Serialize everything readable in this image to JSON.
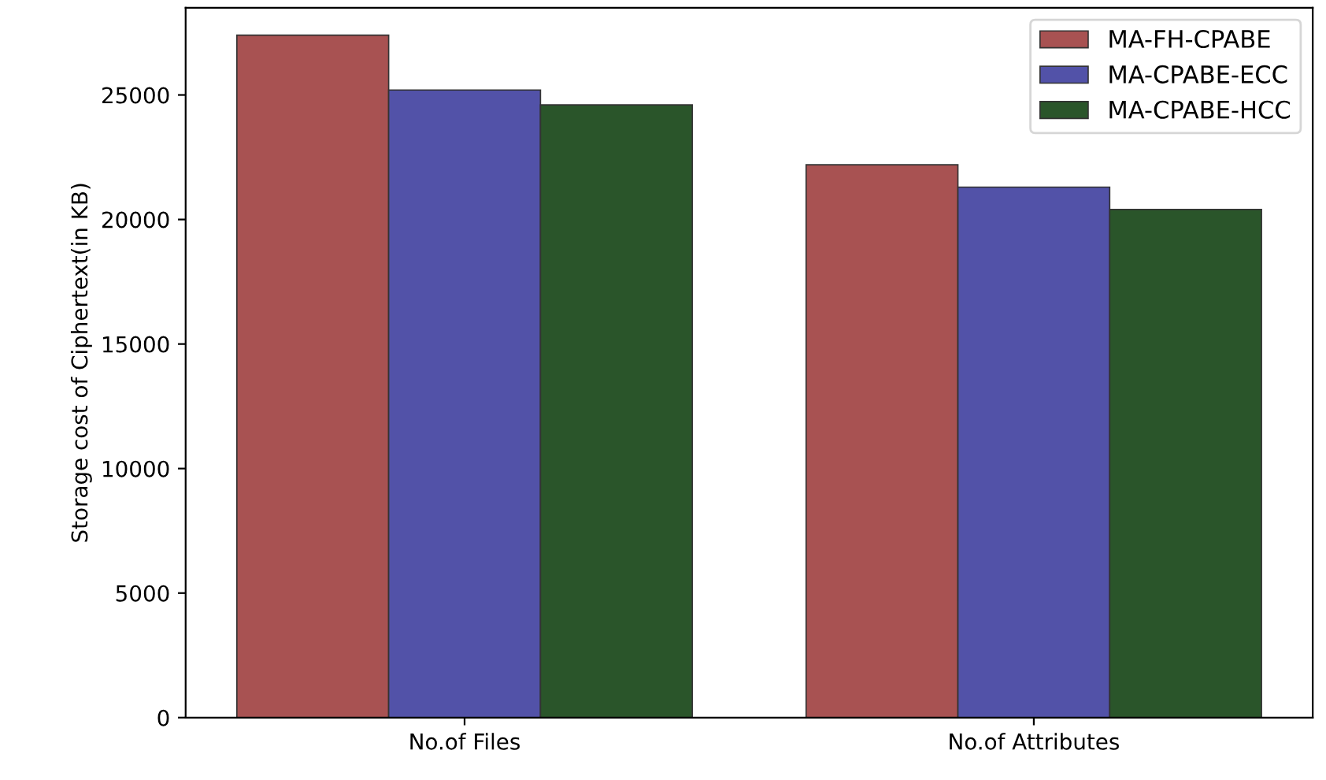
{
  "chart_data": {
    "type": "bar",
    "ylabel": "Storage cost of Ciphertext(in KB)",
    "categories": [
      "No.of Files",
      "No.of Attributes"
    ],
    "series": [
      {
        "name": "MA-FH-CPABE",
        "color": "#a85252",
        "values": [
          27400,
          22200
        ]
      },
      {
        "name": "MA-CPABE-ECC",
        "color": "#5252a8",
        "values": [
          25200,
          21300
        ]
      },
      {
        "name": "MA-CPABE-HCC",
        "color": "#2a552a",
        "values": [
          24600,
          20400
        ]
      }
    ],
    "ylim": [
      0,
      28500
    ],
    "yticks": [
      0,
      5000,
      10000,
      15000,
      20000,
      25000
    ],
    "grid": false,
    "legend": "top right"
  }
}
